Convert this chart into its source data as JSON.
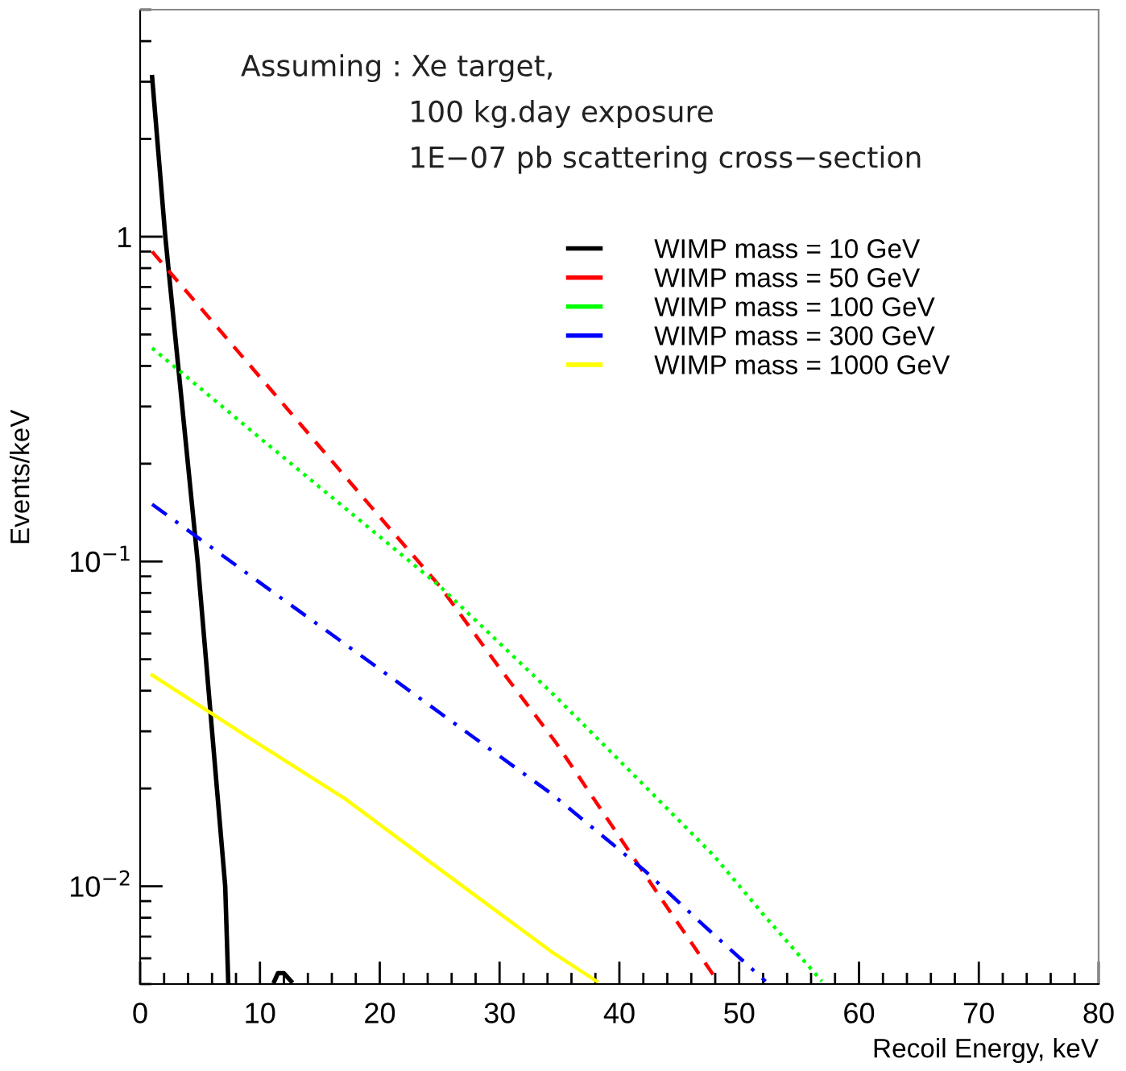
{
  "chart_data": {
    "type": "line",
    "xlabel": "Recoil Energy, keV",
    "ylabel": "Events/keV",
    "log": "y",
    "xlim": [
      0,
      80
    ],
    "xticks": [
      0,
      10,
      20,
      30,
      40,
      50,
      60,
      70,
      80
    ],
    "ylim": [
      0.005,
      5
    ],
    "yticks": [
      {
        "value": 0.01,
        "label": "10$^{−2}$"
      },
      {
        "value": 0.1,
        "label": "10$^{−1}$"
      },
      1
    ],
    "grid": false,
    "legend": "top right",
    "marker": "none",
    "annotations": [
      "Assuming : Xe target,",
      "100 kg.day exposure",
      "1E−07 pb scattering cross−section"
    ],
    "series": [
      {
        "name": "WIMP mass = 10 GeV",
        "color": "#000000",
        "line_style": "solid",
        "x": [
          1,
          2.1,
          4.8,
          7.1,
          7.35,
          9,
          11.2,
          11.5,
          12,
          12.6
        ],
        "values": [
          3.1,
          1,
          0.1,
          0.01,
          0.0051,
          null,
          0.0051,
          0.0054,
          0.0054,
          0.0051
        ]
      },
      {
        "name": "WIMP mass = 50 GeV",
        "color": "#ff0000",
        "line_style": "dashed",
        "x": [
          1,
          11,
          21.1,
          25,
          30,
          34.7,
          40,
          44,
          48.2
        ],
        "values": [
          0.9,
          0.335,
          0.123,
          0.084,
          0.047,
          0.0277,
          0.0142,
          0.0086,
          0.0051
        ]
      },
      {
        "name": "WIMP mass = 100 GeV",
        "color": "#00ff00",
        "line_style": "dotted",
        "x": [
          1,
          10,
          25,
          34.7,
          41,
          47.9,
          52,
          56.9
        ],
        "values": [
          0.454,
          0.24,
          0.084,
          0.0383,
          0.0224,
          0.0124,
          0.0082,
          0.0051
        ]
      },
      {
        "name": "WIMP mass = 300 GeV",
        "color": "#0000ff",
        "line_style": "dashdot",
        "x": [
          1,
          10,
          20,
          34.3,
          42.2,
          47,
          52.2
        ],
        "values": [
          0.15,
          0.086,
          0.0466,
          0.0193,
          0.0111,
          0.0076,
          0.0051
        ]
      },
      {
        "name": "WIMP mass = 1000 GeV",
        "color": "#ffff00",
        "line_style": "solid",
        "x": [
          1,
          9,
          17.1,
          26,
          34.3,
          38.1
        ],
        "values": [
          0.0447,
          0.0288,
          0.0186,
          0.0106,
          0.0063,
          0.0051
        ]
      }
    ]
  }
}
